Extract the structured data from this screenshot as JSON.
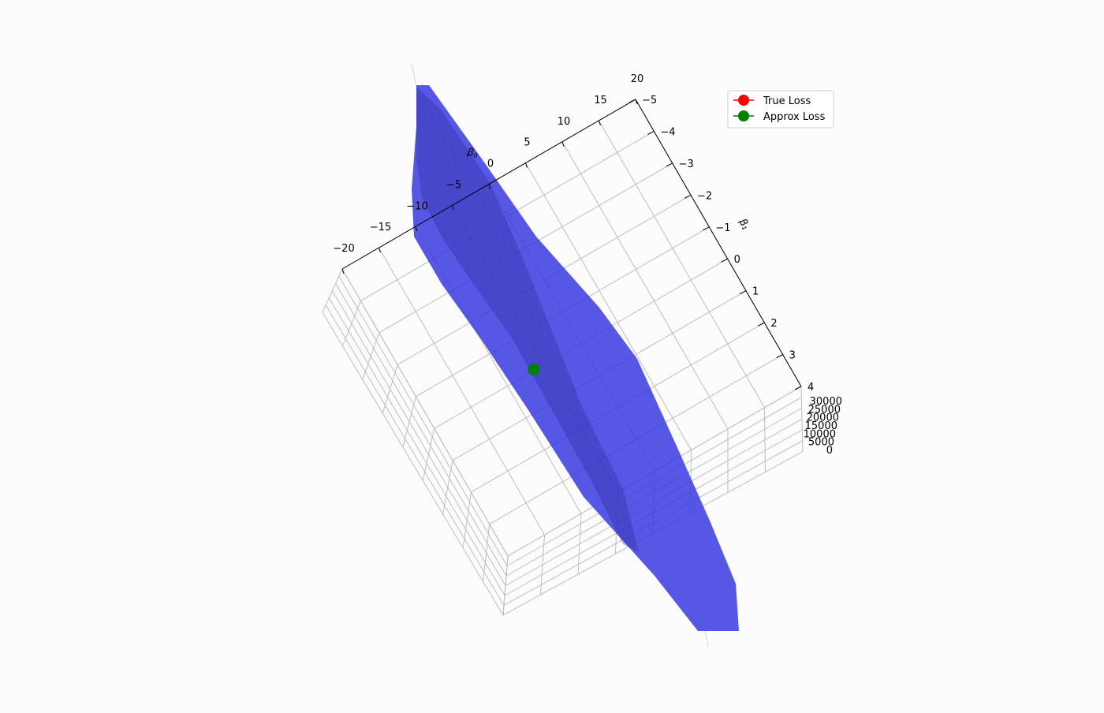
{
  "chart_data": {
    "type": "surface3d",
    "title": "",
    "axes": {
      "x": {
        "label": "β₀",
        "ticks": [
          "−20",
          "−15",
          "−10",
          "−5",
          "0",
          "5",
          "10",
          "15",
          "20"
        ],
        "range": [
          -20,
          20
        ]
      },
      "y": {
        "label": "β₁",
        "ticks": [
          "−5",
          "−4",
          "−3",
          "−2",
          "−1",
          "0",
          "1",
          "2",
          "3",
          "4"
        ],
        "range": [
          -5,
          4
        ]
      },
      "z": {
        "label": "",
        "ticks": [
          "0",
          "5000",
          "10000",
          "15000",
          "20000",
          "25000",
          "30000"
        ],
        "range": [
          0,
          30000
        ]
      }
    },
    "series": [
      {
        "name": "True Loss",
        "kind": "marker",
        "color": "#ff0000"
      },
      {
        "name": "Approx Loss",
        "kind": "marker",
        "color": "#008000",
        "beta0": -5,
        "beta1": 2,
        "loss": 0
      }
    ],
    "surface": {
      "color": "#3a3ae0",
      "opacity": 0.85
    },
    "grid": true,
    "legend": {
      "position": "top-right"
    }
  }
}
